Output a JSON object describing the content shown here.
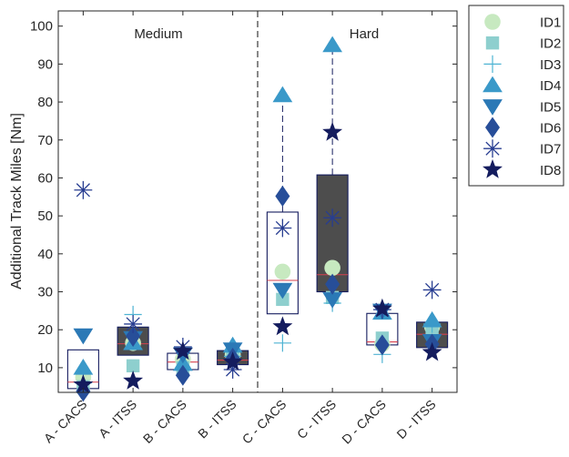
{
  "chart_data": {
    "type": "box",
    "ylabel": "Additional Track Miles [Nm]",
    "xlabel": "",
    "ylim": [
      3.5,
      104
    ],
    "yticks": [
      10,
      20,
      30,
      40,
      50,
      60,
      70,
      80,
      90,
      100
    ],
    "grid": false,
    "legend_position": "outside-top-right",
    "panels": [
      {
        "label": "Medium",
        "categories": [
          "A - CACS",
          "A - ITSS",
          "B - CACS",
          "B - ITSS"
        ]
      },
      {
        "label": "Hard",
        "categories": [
          "C - CACS",
          "C - ITSS",
          "D - CACS",
          "D - ITSS"
        ]
      }
    ],
    "categories": [
      "A - CACS",
      "A - ITSS",
      "B - CACS",
      "B - ITSS",
      "C - CACS",
      "C - ITSS",
      "D - CACS",
      "D - ITSS"
    ],
    "boxes": [
      {
        "q1": 4.5,
        "median": 6.2,
        "q3": 14.7,
        "whisker_low": 4.5,
        "whisker_high": 14.7,
        "fill": "#ffffff"
      },
      {
        "q1": 13.3,
        "median": 16.3,
        "q3": 20.7,
        "whisker_low": 13.3,
        "whisker_high": 20.7,
        "fill": "#4d4d4d"
      },
      {
        "q1": 9.5,
        "median": 11.5,
        "q3": 13.8,
        "whisker_low": 9.5,
        "whisker_high": 13.8,
        "fill": "#ffffff"
      },
      {
        "q1": 10.8,
        "median": 12.0,
        "q3": 14.5,
        "whisker_low": 10.8,
        "whisker_high": 14.5,
        "fill": "#4d4d4d"
      },
      {
        "q1": 24.2,
        "median": 33.0,
        "q3": 51.0,
        "whisker_low": 24.2,
        "whisker_high": 81.5,
        "fill": "#ffffff"
      },
      {
        "q1": 30.0,
        "median": 34.5,
        "q3": 60.8,
        "whisker_low": 30.0,
        "whisker_high": 95.0,
        "fill": "#4d4d4d"
      },
      {
        "q1": 16.0,
        "median": 16.8,
        "q3": 24.3,
        "whisker_low": 16.0,
        "whisker_high": 24.3,
        "fill": "#ffffff"
      },
      {
        "q1": 15.3,
        "median": 18.8,
        "q3": 22.0,
        "whisker_low": 15.3,
        "whisker_high": 22.0,
        "fill": "#4d4d4d"
      }
    ],
    "series": [
      {
        "name": "ID1",
        "marker": "circle",
        "color": "#c7e9c0",
        "values": [
          7.5,
          16.5,
          12.2,
          13.5,
          35.3,
          36.3,
          16.2,
          20.8
        ]
      },
      {
        "name": "ID2",
        "marker": "square",
        "color": "#8ecfce",
        "values": [
          5.0,
          10.5,
          10.0,
          14.0,
          28.0,
          28.5,
          17.8,
          19.5
        ]
      },
      {
        "name": "ID3",
        "marker": "plus",
        "color": "#4eb3d3",
        "values": [
          6.0,
          24.0,
          9.5,
          13.0,
          16.5,
          27.0,
          13.5,
          21.5
        ]
      },
      {
        "name": "ID4",
        "marker": "triangle-up",
        "color": "#3a99c9",
        "values": [
          10.0,
          16.5,
          11.0,
          15.8,
          81.8,
          95.0,
          24.5,
          22.5
        ]
      },
      {
        "name": "ID5",
        "marker": "triangle-down",
        "color": "#2b79b6",
        "values": [
          18.5,
          17.8,
          13.5,
          14.8,
          30.5,
          28.0,
          25.0,
          17.0
        ]
      },
      {
        "name": "ID6",
        "marker": "diamond",
        "color": "#274e99",
        "values": [
          3.8,
          18.3,
          8.0,
          12.5,
          55.2,
          32.0,
          16.0,
          16.2
        ]
      },
      {
        "name": "ID7",
        "marker": "asterisk",
        "color": "#273d91",
        "values": [
          56.8,
          21.5,
          15.5,
          9.5,
          46.8,
          49.5,
          25.3,
          30.5
        ]
      },
      {
        "name": "ID8",
        "marker": "star",
        "color": "#141c5e",
        "values": [
          5.5,
          6.5,
          14.3,
          11.5,
          20.8,
          72.0,
          25.5,
          14.0
        ]
      }
    ]
  }
}
